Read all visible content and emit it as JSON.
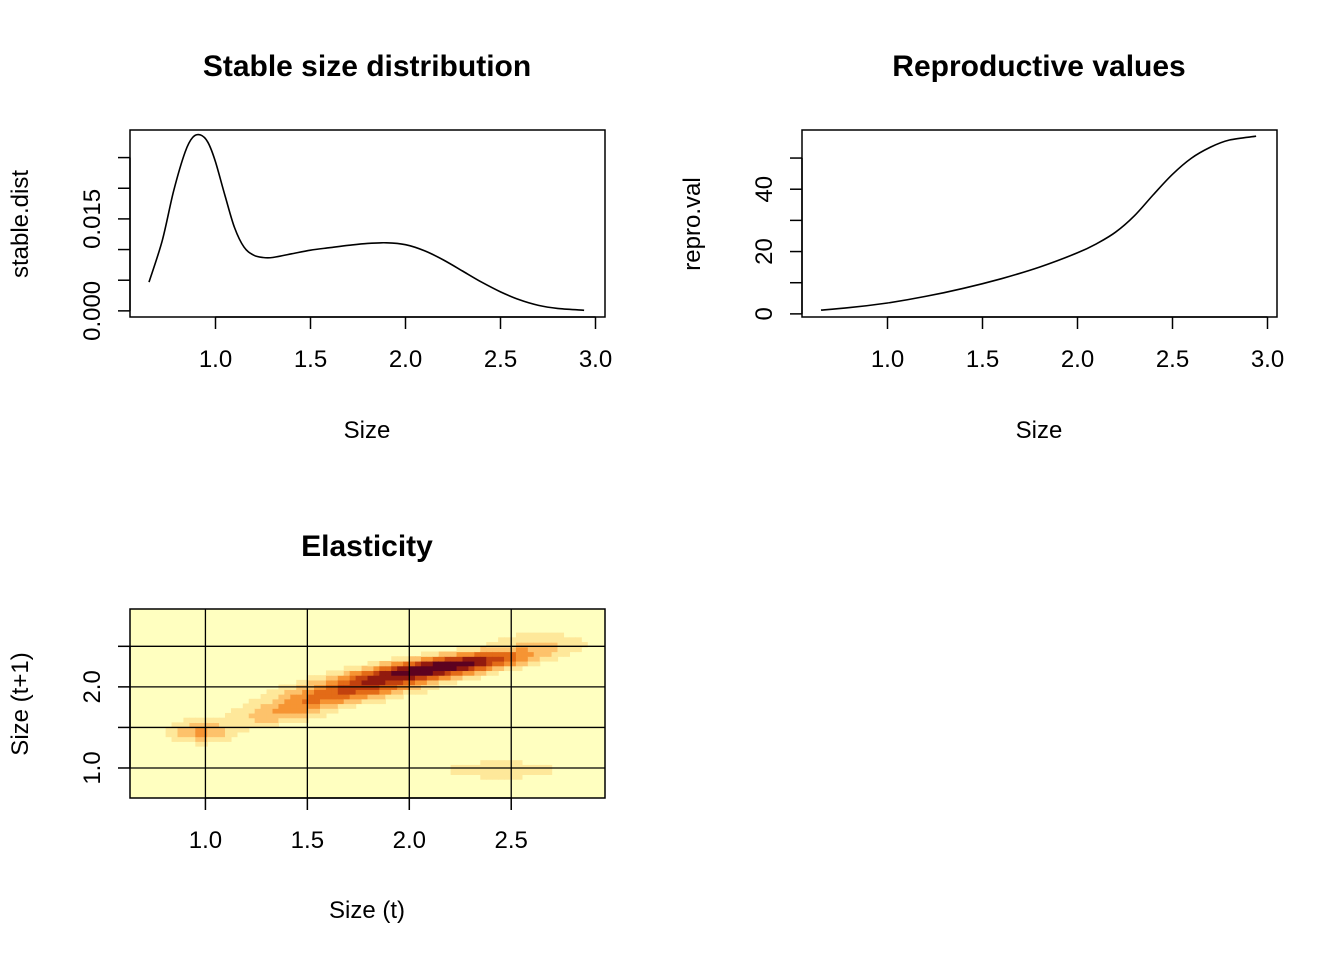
{
  "chart_data": [
    {
      "type": "line",
      "title": "Stable size distribution",
      "xlabel": "Size",
      "ylabel": "stable.dist",
      "xlim": [
        0.55,
        3.05
      ],
      "ylim": [
        -0.001,
        0.0295
      ],
      "xticks": [
        1.0,
        1.5,
        2.0,
        2.5,
        3.0
      ],
      "xtick_labels": [
        "1.0",
        "1.5",
        "2.0",
        "2.5",
        "3.0"
      ],
      "yticks": [
        0.0,
        0.005,
        0.01,
        0.015,
        0.02,
        0.025
      ],
      "ytick_labels": [
        "0.000",
        "0.015"
      ],
      "ytick_label_values": [
        0.0,
        0.015
      ],
      "x": [
        0.65,
        0.72,
        0.78,
        0.84,
        0.88,
        0.92,
        0.96,
        1.0,
        1.05,
        1.1,
        1.15,
        1.2,
        1.25,
        1.3,
        1.4,
        1.5,
        1.6,
        1.7,
        1.8,
        1.9,
        2.0,
        2.1,
        2.2,
        2.3,
        2.4,
        2.5,
        2.6,
        2.7,
        2.8,
        2.94
      ],
      "y": [
        0.0047,
        0.0115,
        0.0196,
        0.0259,
        0.0283,
        0.0287,
        0.0275,
        0.0243,
        0.0188,
        0.0136,
        0.0104,
        0.0091,
        0.0087,
        0.0087,
        0.0093,
        0.0099,
        0.0103,
        0.0107,
        0.011,
        0.0111,
        0.0108,
        0.0098,
        0.0083,
        0.0065,
        0.0047,
        0.0031,
        0.0018,
        0.0009,
        0.0004,
        0.0001
      ]
    },
    {
      "type": "line",
      "title": "Reproductive values",
      "xlabel": "Size",
      "ylabel": "repro.val",
      "xlim": [
        0.55,
        3.05
      ],
      "ylim": [
        -1,
        59
      ],
      "xticks": [
        1.0,
        1.5,
        2.0,
        2.5,
        3.0
      ],
      "xtick_labels": [
        "1.0",
        "1.5",
        "2.0",
        "2.5",
        "3.0"
      ],
      "yticks": [
        0,
        10,
        20,
        30,
        40,
        50
      ],
      "ytick_labels": [
        "0",
        "20",
        "40"
      ],
      "ytick_label_values": [
        0,
        20,
        40
      ],
      "x": [
        0.65,
        0.8,
        1.0,
        1.2,
        1.4,
        1.6,
        1.8,
        2.0,
        2.1,
        2.2,
        2.3,
        2.4,
        2.5,
        2.6,
        2.7,
        2.8,
        2.94
      ],
      "y": [
        1.2,
        2.0,
        3.5,
        5.6,
        8.2,
        11.3,
        15.0,
        19.6,
        22.5,
        26.2,
        31.5,
        38.3,
        44.8,
        50.0,
        53.5,
        55.8,
        57.0
      ]
    },
    {
      "type": "heatmap",
      "title": "Elasticity",
      "xlabel": "Size (t)",
      "ylabel": "Size (t+1)",
      "xlim": [
        0.63,
        2.96
      ],
      "ylim": [
        0.63,
        2.96
      ],
      "xticks": [
        1.0,
        1.5,
        2.0,
        2.5
      ],
      "xtick_labels": [
        "1.0",
        "1.5",
        "2.0",
        "2.5"
      ],
      "yticks": [
        1.0,
        1.5,
        2.0,
        2.5
      ],
      "ytick_labels": [
        "1.0",
        "2.0"
      ],
      "ytick_label_values": [
        1.0,
        2.0
      ],
      "grid": true,
      "colors": [
        "#FFFFC0",
        "#FEE89A",
        "#FDC26B",
        "#F69433",
        "#E36B17",
        "#C2410E",
        "#921A0E",
        "#5C0220"
      ],
      "hotspots": [
        {
          "x": 2.15,
          "y": 2.25,
          "value": 1.0
        },
        {
          "x": 1.75,
          "y": 1.95,
          "value": 0.55
        },
        {
          "x": 1.5,
          "y": 1.75,
          "value": 0.3
        },
        {
          "x": 0.98,
          "y": 1.45,
          "value": 0.4
        },
        {
          "x": 2.45,
          "y": 0.98,
          "value": 0.25
        },
        {
          "x": 2.6,
          "y": 2.6,
          "value": 0.15
        }
      ]
    }
  ]
}
